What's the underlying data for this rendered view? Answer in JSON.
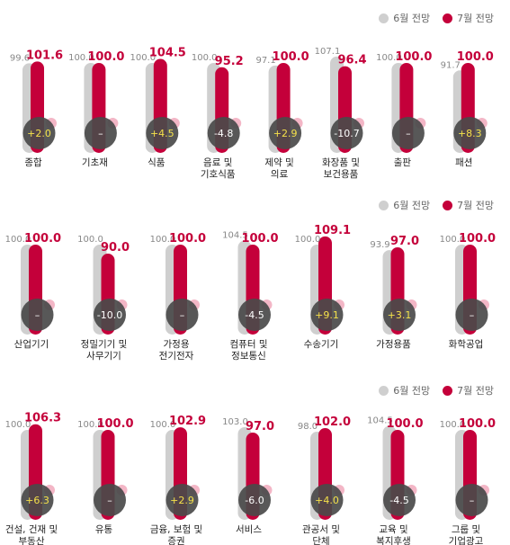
{
  "legend": {
    "prev_label": "6월 전망",
    "curr_label": "7월 전망"
  },
  "colors": {
    "prev": "#cfcfcf",
    "curr": "#c4003a",
    "diff_circle": "#4a4a4a",
    "diff_positive": "#f5e14a",
    "diff_other": "#ffffff",
    "label_prev": "#888888"
  },
  "chart_data": [
    {
      "type": "bar",
      "series": [
        {
          "name": "6월 전망"
        },
        {
          "name": "7월 전망"
        }
      ],
      "categories": [
        {
          "label": [
            "종합"
          ],
          "prev": 99.6,
          "curr": 101.6,
          "diff": "+2.0"
        },
        {
          "label": [
            "기초재"
          ],
          "prev": 100.0,
          "curr": 100.0,
          "diff": "–"
        },
        {
          "label": [
            "식품"
          ],
          "prev": 100.0,
          "curr": 104.5,
          "diff": "+4.5"
        },
        {
          "label": [
            "음료 및",
            "기호식품"
          ],
          "prev": 100.0,
          "curr": 95.2,
          "diff": "-4.8"
        },
        {
          "label": [
            "제약 및",
            "의료"
          ],
          "prev": 97.1,
          "curr": 100.0,
          "diff": "+2.9"
        },
        {
          "label": [
            "화장품 및",
            "보건용품"
          ],
          "prev": 107.1,
          "curr": 96.4,
          "diff": "-10.7"
        },
        {
          "label": [
            "출판"
          ],
          "prev": 100.0,
          "curr": 100.0,
          "diff": "–"
        },
        {
          "label": [
            "패션"
          ],
          "prev": 91.7,
          "curr": 100.0,
          "diff": "+8.3"
        }
      ]
    },
    {
      "type": "bar",
      "series": [
        {
          "name": "6월 전망"
        },
        {
          "name": "7월 전망"
        }
      ],
      "categories": [
        {
          "label": [
            "산업기기"
          ],
          "prev": 100.0,
          "curr": 100.0,
          "diff": "–"
        },
        {
          "label": [
            "정밀기기 및",
            "사무기기"
          ],
          "prev": 100.0,
          "curr": 90.0,
          "diff": "-10.0"
        },
        {
          "label": [
            "가정용",
            "전기전자"
          ],
          "prev": 100.0,
          "curr": 100.0,
          "diff": "–"
        },
        {
          "label": [
            "컴퓨터 및",
            "정보통신"
          ],
          "prev": 104.5,
          "curr": 100.0,
          "diff": "-4.5"
        },
        {
          "label": [
            "수송기기"
          ],
          "prev": 100.0,
          "curr": 109.1,
          "diff": "+9.1"
        },
        {
          "label": [
            "가정용품"
          ],
          "prev": 93.9,
          "curr": 97.0,
          "diff": "+3.1"
        },
        {
          "label": [
            "화학공업"
          ],
          "prev": 100.0,
          "curr": 100.0,
          "diff": "–"
        }
      ]
    },
    {
      "type": "bar",
      "series": [
        {
          "name": "6월 전망"
        },
        {
          "name": "7월 전망"
        }
      ],
      "categories": [
        {
          "label": [
            "건설, 건재 및",
            "부동산"
          ],
          "prev": 100.0,
          "curr": 106.3,
          "diff": "+6.3"
        },
        {
          "label": [
            "유통"
          ],
          "prev": 100.0,
          "curr": 100.0,
          "diff": "–"
        },
        {
          "label": [
            "금융, 보험 및",
            "증권"
          ],
          "prev": 100.0,
          "curr": 102.9,
          "diff": "+2.9"
        },
        {
          "label": [
            "서비스"
          ],
          "prev": 103.0,
          "curr": 97.0,
          "diff": "-6.0"
        },
        {
          "label": [
            "관공서 및",
            "단체"
          ],
          "prev": 98.0,
          "curr": 102.0,
          "diff": "+4.0"
        },
        {
          "label": [
            "교육 및",
            "복지후생"
          ],
          "prev": 104.5,
          "curr": 100.0,
          "diff": "-4.5"
        },
        {
          "label": [
            "그룹 및",
            "기업광고"
          ],
          "prev": 100.0,
          "curr": 100.0,
          "diff": "–"
        }
      ]
    }
  ]
}
